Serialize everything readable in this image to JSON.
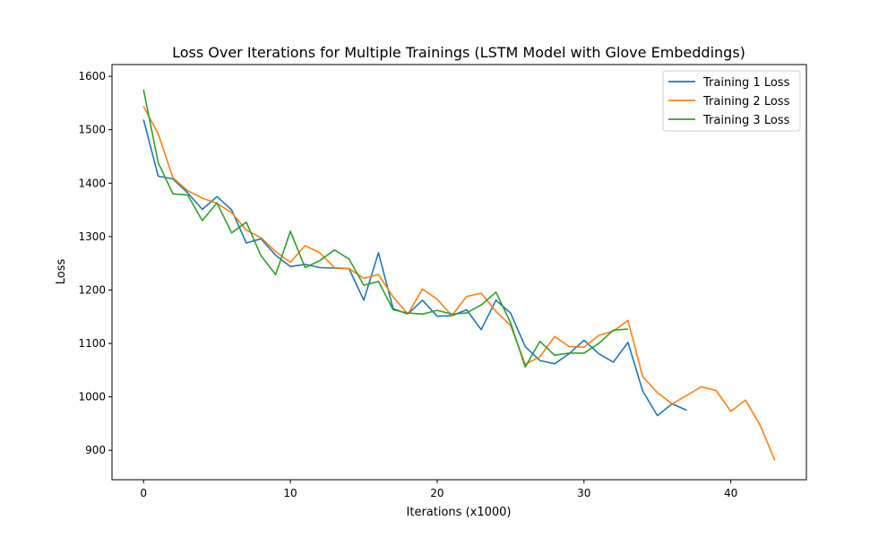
{
  "chart_data": {
    "type": "line",
    "title": "Loss Over Iterations for Multiple Trainings (LSTM Model with Glove Embeddings)",
    "xlabel": "Iterations (x1000)",
    "ylabel": "Loss",
    "xlim": [
      -2.15,
      45.15
    ],
    "ylim": [
      845,
      1622
    ],
    "xticks": [
      0,
      10,
      20,
      30,
      40
    ],
    "yticks": [
      900,
      1000,
      1100,
      1200,
      1300,
      1400,
      1500,
      1600
    ],
    "grid": false,
    "legend_position": "top-right",
    "series": [
      {
        "name": "Training 1 Loss",
        "color": "#1f77b4",
        "x": [
          0,
          1,
          2,
          3,
          4,
          5,
          6,
          7,
          8,
          9,
          10,
          11,
          12,
          13,
          14,
          15,
          16,
          17,
          18,
          19,
          20,
          21,
          22,
          23,
          24,
          25,
          26,
          27,
          28,
          29,
          30,
          31,
          32,
          33,
          34,
          35,
          36,
          37
        ],
        "values": [
          1519,
          1413,
          1408,
          1382,
          1351,
          1375,
          1350,
          1288,
          1296,
          1265,
          1244,
          1248,
          1242,
          1241,
          1240,
          1181,
          1270,
          1165,
          1155,
          1181,
          1151,
          1152,
          1163,
          1126,
          1181,
          1157,
          1094,
          1068,
          1062,
          1081,
          1106,
          1081,
          1065,
          1102,
          1011,
          965,
          987,
          975
        ]
      },
      {
        "name": "Training 2 Loss",
        "color": "#ff7f0e",
        "x": [
          0,
          1,
          2,
          3,
          4,
          5,
          6,
          7,
          8,
          9,
          10,
          11,
          12,
          13,
          14,
          15,
          16,
          17,
          18,
          19,
          20,
          21,
          22,
          23,
          24,
          25,
          26,
          27,
          28,
          29,
          30,
          31,
          32,
          33,
          34,
          35,
          36,
          37,
          38,
          39,
          40,
          41,
          42,
          43
        ],
        "values": [
          1544,
          1492,
          1410,
          1386,
          1372,
          1362,
          1345,
          1312,
          1298,
          1272,
          1252,
          1283,
          1270,
          1242,
          1240,
          1222,
          1229,
          1187,
          1155,
          1202,
          1183,
          1152,
          1188,
          1194,
          1160,
          1134,
          1061,
          1075,
          1113,
          1094,
          1093,
          1115,
          1123,
          1143,
          1038,
          1008,
          987,
          1003,
          1019,
          1012,
          973,
          994,
          947,
          881
        ]
      },
      {
        "name": "Training 3 Loss",
        "color": "#2ca02c",
        "x": [
          0,
          1,
          2,
          3,
          4,
          5,
          6,
          7,
          8,
          9,
          10,
          11,
          12,
          13,
          14,
          15,
          16,
          17,
          18,
          19,
          20,
          21,
          22,
          23,
          24,
          25,
          26,
          27,
          28,
          29,
          30,
          31,
          32,
          33
        ],
        "values": [
          1575,
          1438,
          1380,
          1378,
          1330,
          1363,
          1307,
          1327,
          1264,
          1229,
          1310,
          1242,
          1255,
          1275,
          1258,
          1209,
          1216,
          1163,
          1157,
          1155,
          1162,
          1155,
          1157,
          1172,
          1196,
          1139,
          1056,
          1104,
          1078,
          1082,
          1082,
          1100,
          1125,
          1127
        ]
      }
    ]
  }
}
